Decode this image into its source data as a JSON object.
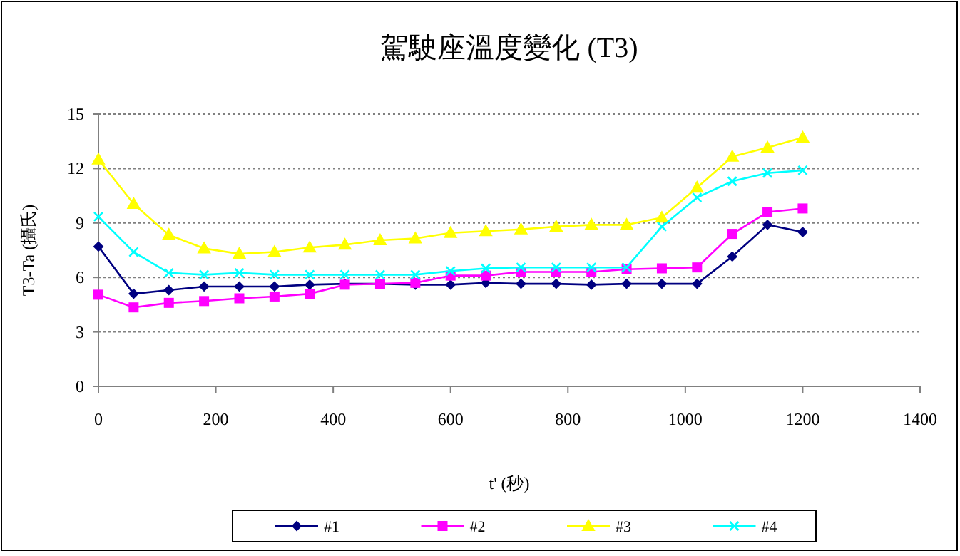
{
  "chart_data": {
    "type": "line",
    "title": "駕駛座溫度變化 (T3)",
    "xlabel": "t' (秒)",
    "ylabel": "T3-Ta (攝氏)",
    "x": [
      0,
      60,
      120,
      180,
      240,
      300,
      360,
      420,
      480,
      540,
      600,
      660,
      720,
      780,
      840,
      900,
      960,
      1020,
      1080,
      1140,
      1200
    ],
    "series": [
      {
        "name": "#1",
        "color": "#000080",
        "marker": "diamond",
        "values": [
          7.7,
          5.1,
          5.3,
          5.5,
          5.5,
          5.5,
          5.6,
          5.65,
          5.65,
          5.6,
          5.6,
          5.7,
          5.65,
          5.65,
          5.6,
          5.65,
          5.65,
          5.65,
          7.15,
          8.9,
          8.5
        ]
      },
      {
        "name": "#2",
        "color": "#ff00ff",
        "marker": "square",
        "values": [
          5.05,
          4.35,
          4.6,
          4.7,
          4.85,
          4.95,
          5.1,
          5.6,
          5.65,
          5.7,
          6.1,
          6.1,
          6.3,
          6.3,
          6.3,
          6.45,
          6.5,
          6.55,
          8.4,
          9.6,
          9.8
        ]
      },
      {
        "name": "#3",
        "color": "#ffff00",
        "marker": "triangle",
        "values": [
          12.5,
          10.05,
          8.35,
          7.6,
          7.3,
          7.4,
          7.65,
          7.8,
          8.05,
          8.15,
          8.45,
          8.55,
          8.65,
          8.8,
          8.9,
          8.9,
          9.3,
          10.95,
          12.65,
          13.15,
          13.7
        ]
      },
      {
        "name": "#4",
        "color": "#00ffff",
        "marker": "cross",
        "values": [
          9.35,
          7.4,
          6.25,
          6.15,
          6.25,
          6.15,
          6.15,
          6.15,
          6.15,
          6.15,
          6.35,
          6.5,
          6.55,
          6.55,
          6.55,
          6.55,
          8.8,
          10.4,
          11.3,
          11.75,
          11.9
        ]
      }
    ],
    "xlim": [
      0,
      1400
    ],
    "xticks": [
      0,
      200,
      400,
      600,
      800,
      1000,
      1200,
      1400
    ],
    "ylim": [
      0,
      15
    ],
    "yticks": [
      0,
      3,
      6,
      9,
      12,
      15
    ],
    "grid": "y",
    "legend": "bottom",
    "line_style": "solid"
  }
}
